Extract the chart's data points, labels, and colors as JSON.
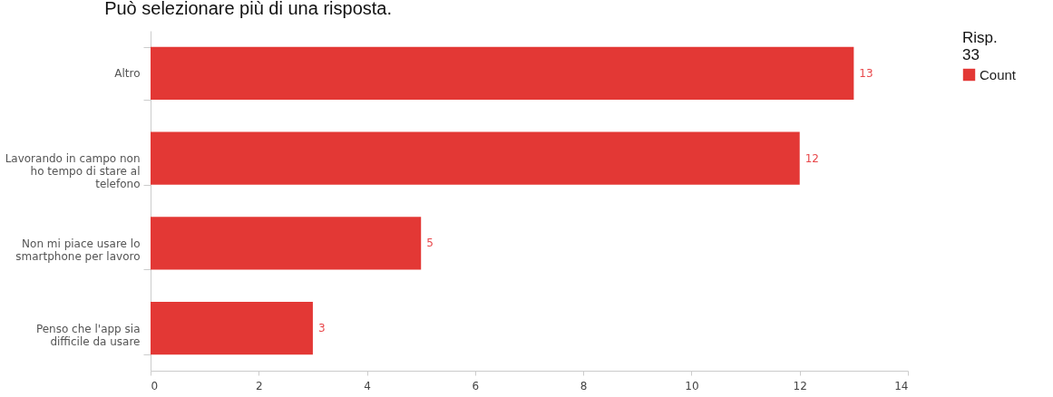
{
  "chart_data": {
    "type": "bar",
    "orientation": "horizontal",
    "title": "Può selezionare più di una risposta.",
    "categories": [
      "Altro",
      "Lavorando in campo non ho tempo di stare al telefono",
      "Non mi piace usare lo smartphone per lavoro",
      "Penso che l'app sia difficile da usare"
    ],
    "series": [
      {
        "name": "Count",
        "color": "#e33835",
        "values": [
          13,
          12,
          5,
          3
        ]
      }
    ],
    "xlim": [
      0,
      14
    ],
    "xticks": [
      0,
      2,
      4,
      6,
      8,
      10,
      12,
      14
    ],
    "legend_title": "Risp. 33",
    "legend": "right",
    "data_labels": true,
    "grid": false
  }
}
